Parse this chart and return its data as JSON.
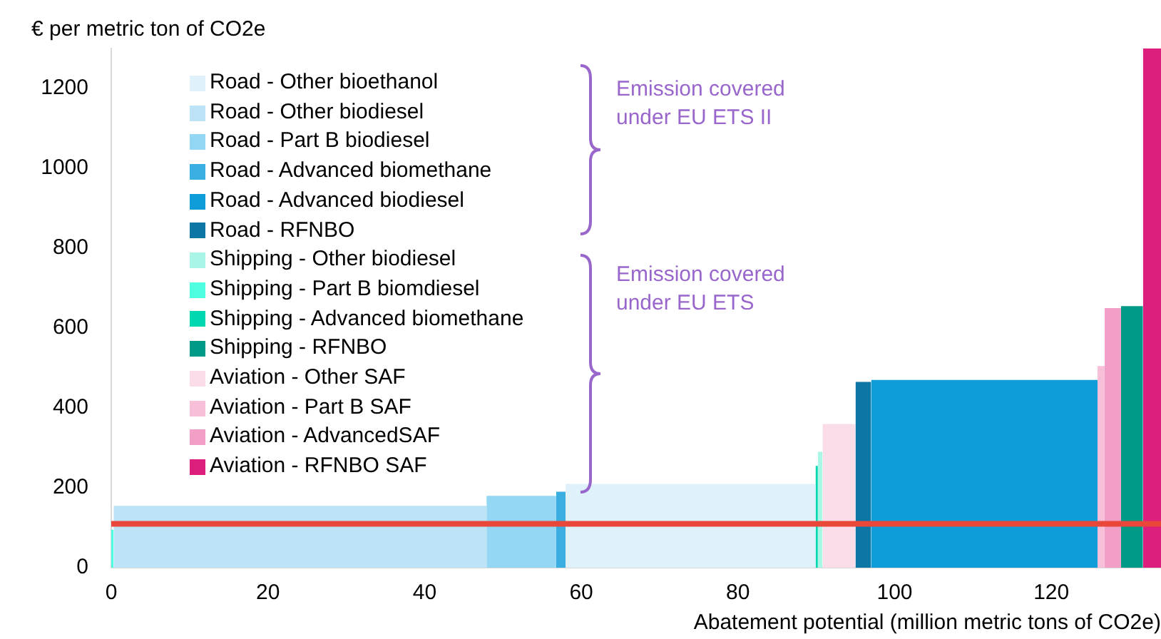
{
  "chart_data": {
    "type": "histogram",
    "ylabel": "€ per metric ton of CO2e",
    "xlabel": "Abatement potential (million metric tons of CO2e)",
    "xlim": [
      0,
      134
    ],
    "xticks": [
      0,
      20,
      40,
      60,
      80,
      100,
      120
    ],
    "ylim": [
      0,
      1300
    ],
    "yticks": [
      0,
      200,
      400,
      600,
      800,
      1000,
      1200
    ],
    "grid": false,
    "legend": "top left",
    "bins": [
      0,
      0.3,
      47.9,
      56.8,
      58,
      89.9,
      90.2,
      90.8,
      95,
      97,
      125.9,
      126.8,
      128.9,
      131.7,
      134
    ],
    "series": [
      {
        "name": "Road - Other bioethanol",
        "color": "#dff1fa",
        "values": [
          null,
          null,
          null,
          null,
          210,
          null,
          null,
          null,
          null,
          null,
          null,
          null,
          null,
          null
        ]
      },
      {
        "name": "Road - Other biodiesel",
        "color": "#bde3f6",
        "values": [
          null,
          155,
          null,
          null,
          null,
          null,
          null,
          null,
          null,
          null,
          null,
          null,
          null,
          null
        ]
      },
      {
        "name": "Road - Part B biodiesel",
        "color": "#93d7f4",
        "values": [
          null,
          null,
          180,
          null,
          null,
          null,
          null,
          null,
          null,
          null,
          null,
          null,
          null,
          null
        ]
      },
      {
        "name": "Road - Advanced biomethane",
        "color": "#3aaee0",
        "values": [
          null,
          null,
          null,
          190,
          null,
          null,
          null,
          null,
          null,
          null,
          null,
          null,
          null,
          null
        ]
      },
      {
        "name": "Road - Advanced biodiesel",
        "color": "#109cd8",
        "values": [
          null,
          null,
          null,
          null,
          null,
          null,
          null,
          null,
          null,
          470,
          null,
          null,
          null,
          null
        ]
      },
      {
        "name": "Road - RFNBO",
        "color": "#0c77a5",
        "values": [
          null,
          null,
          null,
          null,
          null,
          null,
          null,
          null,
          465,
          null,
          null,
          null,
          null,
          null
        ]
      },
      {
        "name": "Shipping - Other biodiesel",
        "color": "#a9f5e6",
        "values": [
          null,
          null,
          null,
          null,
          null,
          null,
          290,
          null,
          null,
          null,
          null,
          null,
          null,
          null
        ]
      },
      {
        "name": "Shipping - Part B biomdiesel",
        "color": "#4dffe0",
        "values": [
          95,
          null,
          null,
          null,
          null,
          null,
          null,
          null,
          null,
          null,
          null,
          null,
          null,
          null
        ]
      },
      {
        "name": "Shipping - Advanced biomethane",
        "color": "#00d8b0",
        "values": [
          null,
          null,
          null,
          null,
          null,
          255,
          null,
          null,
          null,
          null,
          null,
          null,
          null,
          null
        ]
      },
      {
        "name": "Shipping - RFNBO",
        "color": "#009a86",
        "values": [
          null,
          null,
          null,
          null,
          null,
          null,
          null,
          null,
          null,
          null,
          null,
          null,
          655,
          null
        ]
      },
      {
        "name": "Aviation - Other SAF",
        "color": "#fbdce9",
        "values": [
          null,
          null,
          null,
          null,
          null,
          null,
          null,
          360,
          null,
          null,
          null,
          null,
          null,
          null
        ]
      },
      {
        "name": "Aviation - Part B SAF",
        "color": "#f8bfd9",
        "values": [
          null,
          null,
          null,
          null,
          null,
          null,
          null,
          null,
          null,
          null,
          505,
          null,
          null,
          null
        ]
      },
      {
        "name": "Aviation - AdvancedSAF",
        "color": "#f29fc8",
        "values": [
          null,
          null,
          null,
          null,
          null,
          null,
          null,
          null,
          null,
          null,
          null,
          650,
          null,
          null
        ]
      },
      {
        "name": "Aviation - RFNBO SAF",
        "color": "#dc1e7d",
        "values": [
          null,
          null,
          null,
          null,
          null,
          null,
          null,
          null,
          null,
          null,
          null,
          null,
          null,
          1300
        ]
      }
    ],
    "ref_lines": [
      {
        "axis": "y",
        "value": 110,
        "color": "#e8473a"
      }
    ],
    "annotations": [
      "Emission covered under EU ETS II",
      "Emission covered under EU ETS"
    ]
  }
}
